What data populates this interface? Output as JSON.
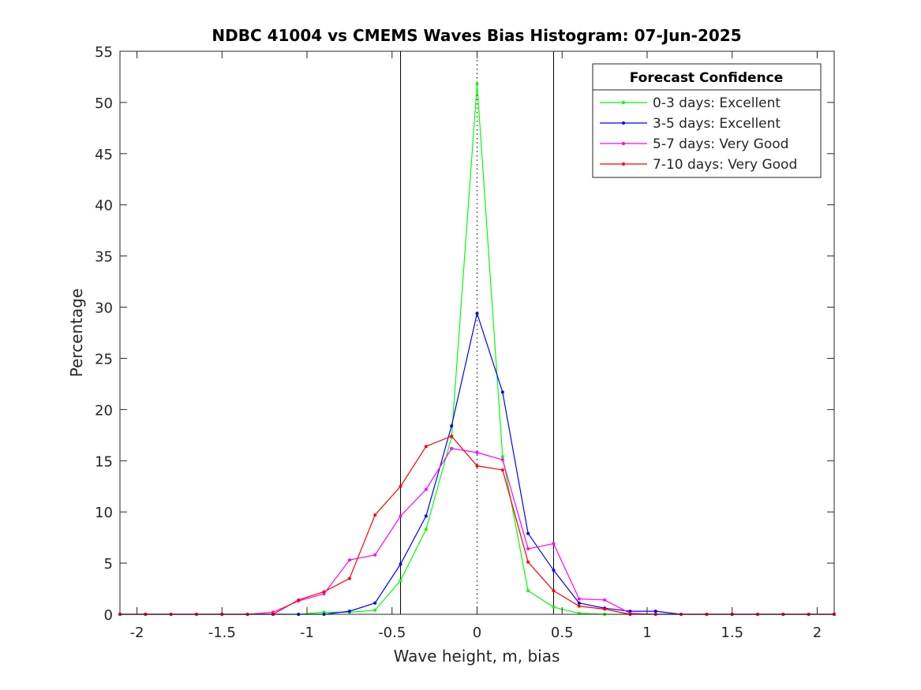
{
  "chart_data": {
    "type": "line",
    "title": "NDBC 41004 vs CMEMS Waves Bias Histogram: 07-Jun-2025",
    "xlabel": "Wave height, m, bias",
    "ylabel": "Percentage",
    "xlim": [
      -2.1,
      2.1
    ],
    "ylim": [
      0,
      55
    ],
    "xticks": [
      -2,
      -1.5,
      -1,
      -0.5,
      0,
      0.5,
      1,
      1.5,
      2
    ],
    "xtick_labels": [
      "-2",
      "-1.5",
      "-1",
      "-0.5",
      "0",
      "0.5",
      "1",
      "1.5",
      "2"
    ],
    "yticks": [
      0,
      5,
      10,
      15,
      20,
      25,
      30,
      35,
      40,
      45,
      50,
      55
    ],
    "ytick_labels": [
      "0",
      "5",
      "10",
      "15",
      "20",
      "25",
      "30",
      "35",
      "40",
      "45",
      "50",
      "55"
    ],
    "grid": false,
    "legend_title": "Forecast Confidence",
    "legend_position": "top-right",
    "reference_lines": {
      "solid_x": [
        -0.45,
        0.45
      ],
      "dotted_x": [
        0
      ]
    },
    "x": [
      -2.1,
      -1.95,
      -1.8,
      -1.65,
      -1.5,
      -1.35,
      -1.2,
      -1.05,
      -0.9,
      -0.75,
      -0.6,
      -0.45,
      -0.3,
      -0.15,
      0,
      0.15,
      0.3,
      0.45,
      0.6,
      0.75,
      0.9,
      1.05,
      1.2,
      1.35,
      1.5,
      1.65,
      1.8,
      1.95,
      2.1
    ],
    "series": [
      {
        "name": "0-3 days: Excellent",
        "color": "#00ff00",
        "values": [
          0,
          0,
          0,
          0,
          0,
          0,
          0,
          0,
          0.2,
          0.2,
          0.4,
          3.3,
          8.3,
          17.3,
          51.8,
          15.4,
          2.3,
          0.7,
          0.1,
          0,
          0,
          0,
          0,
          0,
          0,
          0,
          0,
          0,
          0
        ]
      },
      {
        "name": "3-5 days: Excellent",
        "color": "#0000ff",
        "values": [
          0,
          0,
          0,
          0,
          0,
          0,
          0,
          0,
          0,
          0.3,
          1.1,
          4.9,
          9.6,
          18.4,
          29.4,
          21.7,
          7.9,
          4.3,
          1.1,
          0.6,
          0.3,
          0.3,
          0,
          0,
          0,
          0,
          0,
          0,
          0
        ]
      },
      {
        "name": "5-7 days: Very Good",
        "color": "#ff00ff",
        "values": [
          0,
          0,
          0,
          0,
          0,
          0,
          0.2,
          1.3,
          2.0,
          5.3,
          5.8,
          9.6,
          12.2,
          16.2,
          15.8,
          15.1,
          6.4,
          6.9,
          1.5,
          1.4,
          0.1,
          0,
          0,
          0,
          0,
          0,
          0,
          0,
          0
        ]
      },
      {
        "name": "7-10 days: Very Good",
        "color": "#ff0000",
        "values": [
          0,
          0,
          0,
          0,
          0,
          0,
          0,
          1.4,
          2.2,
          3.5,
          9.7,
          12.5,
          16.4,
          17.4,
          14.5,
          14.1,
          5.1,
          2.3,
          0.8,
          0.5,
          0,
          0,
          0,
          0,
          0,
          0,
          0,
          0,
          0
        ]
      }
    ]
  }
}
